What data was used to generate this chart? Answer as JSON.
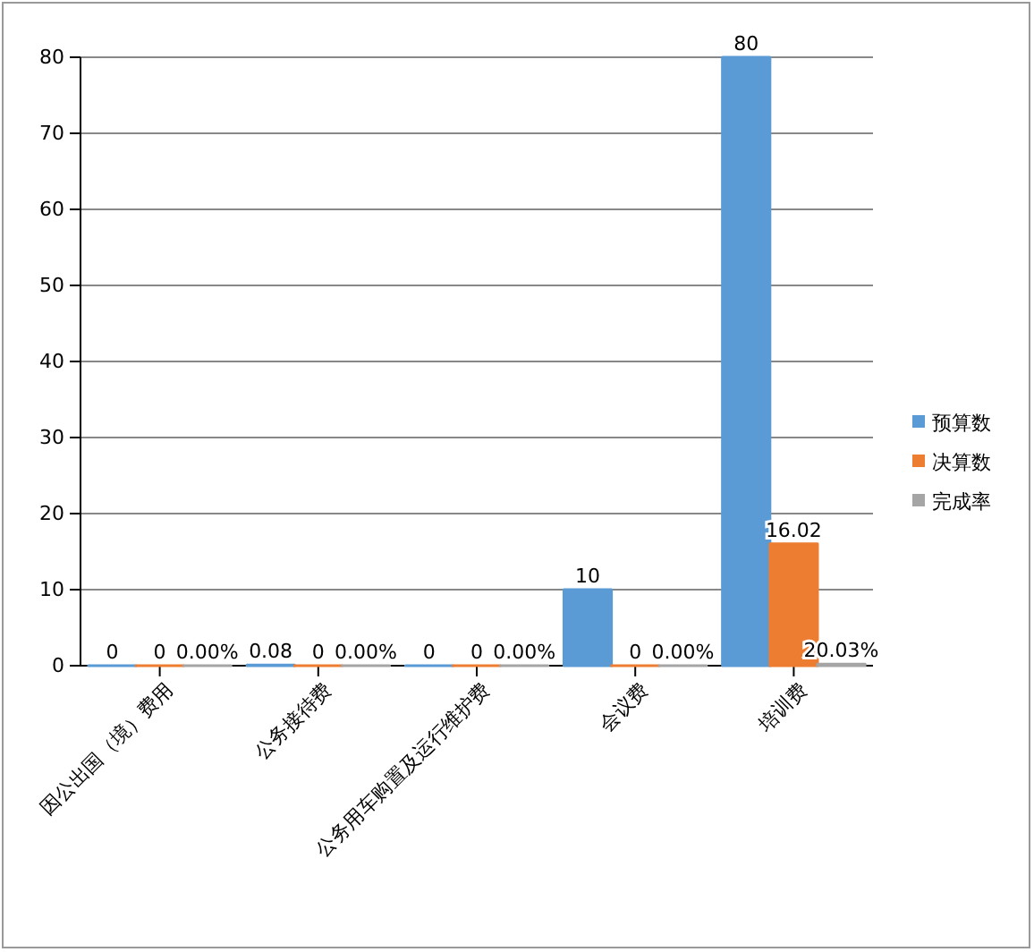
{
  "chart_data": {
    "type": "bar",
    "categories": [
      "因公出国（境）费用",
      "公务接待费",
      "公务用车购置及运行维护费",
      "会议费",
      "培训费"
    ],
    "series": [
      {
        "name": "预算数",
        "color": "#5b9bd5",
        "values": [
          0,
          0.08,
          0,
          10,
          80
        ],
        "value_labels": [
          "0",
          "0.08",
          "0",
          "10",
          "80"
        ]
      },
      {
        "name": "决算数",
        "color": "#ed7d31",
        "values": [
          0,
          0,
          0,
          0,
          16.02
        ],
        "value_labels": [
          "0",
          "0",
          "0",
          "0",
          "16.02"
        ]
      },
      {
        "name": "完成率",
        "color": "#a5a5a5",
        "values": [
          0,
          0,
          0,
          0,
          0.2003
        ],
        "value_labels": [
          "0.00%",
          "0.00%",
          "0.00%",
          "0.00%",
          "20.03%"
        ]
      }
    ],
    "ylim": [
      0,
      80
    ],
    "yticks": [
      0,
      10,
      20,
      30,
      40,
      50,
      60,
      70,
      80
    ],
    "grid": "y",
    "legend": "right"
  }
}
